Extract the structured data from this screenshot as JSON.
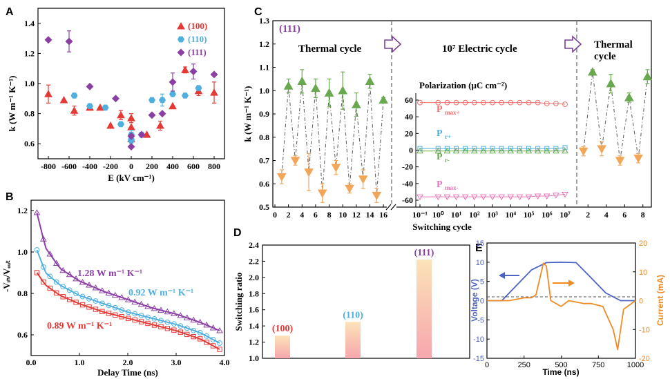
{
  "colors": {
    "red": "#e53935",
    "blue": "#4fb0e0",
    "purple": "#8b3fa3",
    "green": "#6aa84f",
    "orange": "#f2a65a",
    "pink": "#e377b7",
    "salmon": "#ef6f6c",
    "navy": "#4a63c4",
    "cur": "#f08a24"
  },
  "panels": {
    "A": {
      "label": "A",
      "xlabel": "E (kV cm⁻¹)",
      "ylabel": "k (W m⁻¹ K⁻¹)",
      "xlim": [
        -900,
        900
      ],
      "ylim": [
        0.5,
        1.5
      ],
      "xticks": [
        "-800",
        "-600",
        "-400",
        "-200",
        "0",
        "200",
        "400",
        "600",
        "800"
      ],
      "yticks": [
        "0.6",
        "0.8",
        "1.0",
        "1.2",
        "1.4"
      ],
      "legend": [
        "(100)",
        "(110)",
        "(111)"
      ],
      "legend_pos": "top-right"
    },
    "B": {
      "label": "B",
      "xlabel": "Delay Time (ns)",
      "ylabel": "-Vᵢₙ/Vₒᵤₜ",
      "xlim": [
        0,
        4.0
      ],
      "ylim": [
        0.5,
        1.25
      ],
      "xticks": [
        "0.0",
        "1.0",
        "2.0",
        "3.0",
        "4.0"
      ],
      "yticks": [
        "0.6",
        "0.8",
        "1.0",
        "1.2"
      ],
      "annotations": [
        "1.28 W m⁻¹ K⁻¹",
        "0.92 W m⁻¹ K⁻¹",
        "0.89 W m⁻¹ K⁻¹"
      ]
    },
    "C": {
      "label": "C",
      "tag": "(111)",
      "xlabel": "Switching cycle",
      "ylabel": "k (W m⁻¹ K⁻¹)",
      "ylim": [
        0.5,
        1.3
      ],
      "yticks": [
        "0.5",
        "0.6",
        "0.7",
        "0.8",
        "0.9",
        "1.0",
        "1.1",
        "1.2",
        "1.3"
      ],
      "thermal_label": "Thermal cycle",
      "electric_label": "10⁷ Electric cycle",
      "thermal2_label": "Thermal cycle",
      "left_xticks": [
        "0",
        "2",
        "4",
        "6",
        "8",
        "10",
        "12",
        "14",
        "16"
      ],
      "mid_xticks": [
        "10⁻¹",
        "10⁰",
        "10¹",
        "10²",
        "10³",
        "10⁴",
        "10⁵",
        "10⁶",
        "10⁷"
      ],
      "right_xticks": [
        "2",
        "4",
        "6",
        "8"
      ],
      "pol_title": "Polarization (μC cm⁻²)",
      "pol_yticks": [
        "60",
        "40",
        "20",
        "0",
        "-20",
        "-40",
        "-60"
      ],
      "pol_labels": [
        "P",
        "max+",
        "P",
        "r+",
        "P",
        "r-",
        "P",
        "max-"
      ]
    },
    "D": {
      "label": "D",
      "ylabel": "Switching ratio",
      "ylim": [
        1.0,
        2.4
      ],
      "yticks": [
        "1.0",
        "1.2",
        "1.4",
        "1.6",
        "1.8",
        "2.0",
        "2.2",
        "2.4"
      ]
    },
    "E": {
      "label": "E",
      "xlabel": "Time (ns)",
      "ylabel_left": "Voltage (V)",
      "ylabel_right": "Current (mA)",
      "xticks": [
        "0",
        "250",
        "500",
        "750",
        "1000"
      ],
      "yticks_left": [
        "-15",
        "-10",
        "-5",
        "0",
        "5",
        "10",
        "15"
      ],
      "yticks_right": [
        "-20",
        "-10",
        "0",
        "10",
        "20"
      ]
    }
  },
  "chart_data": [
    {
      "panel": "A",
      "type": "scatter",
      "series": [
        {
          "name": "(100)",
          "x": [
            -800,
            -650,
            -550,
            -400,
            -300,
            -200,
            -100,
            0,
            0,
            0,
            150,
            280,
            400,
            520,
            650,
            800
          ],
          "y": [
            0.93,
            0.89,
            0.82,
            0.84,
            0.84,
            0.72,
            0.79,
            0.77,
            0.71,
            0.63,
            0.66,
            0.72,
            0.85,
            1.09,
            0.95,
            0.94
          ],
          "err": [
            0.06,
            0,
            0.03,
            0,
            0,
            0,
            0.03,
            0.03,
            0,
            0,
            0,
            0.03,
            0,
            0.02,
            0.03,
            0.07
          ]
        },
        {
          "name": "(110)",
          "x": [
            -550,
            -400,
            -250,
            -100,
            0,
            0,
            0,
            100,
            200,
            300,
            400,
            520,
            650
          ],
          "y": [
            0.92,
            0.85,
            0.84,
            0.73,
            0.66,
            0.63,
            0.62,
            0.66,
            0.89,
            0.89,
            0.93,
            0.92,
            0.97
          ],
          "err": [
            0,
            0,
            0,
            0,
            0.03,
            0,
            0,
            0,
            0,
            0.04,
            0,
            0,
            0
          ]
        },
        {
          "name": "(111)",
          "x": [
            -800,
            -600,
            -400,
            -150,
            0,
            0,
            100,
            200,
            300,
            400,
            600,
            800
          ],
          "y": [
            1.29,
            1.28,
            0.98,
            0.9,
            0.58,
            0.65,
            0.66,
            0.79,
            0.8,
            1.01,
            1.08,
            1.06
          ],
          "err": [
            0,
            0.07,
            0,
            0,
            0,
            0,
            0,
            0,
            0,
            0.06,
            0.05,
            0
          ]
        }
      ]
    },
    {
      "panel": "B",
      "type": "line",
      "series": [
        {
          "name": "1.28 W m⁻¹ K⁻¹",
          "x": [
            0.12,
            0.3,
            0.6,
            1.0,
            1.5,
            2.0,
            2.5,
            3.0,
            3.5,
            3.9
          ],
          "y": [
            1.19,
            1.02,
            0.92,
            0.86,
            0.81,
            0.77,
            0.73,
            0.7,
            0.66,
            0.62
          ]
        },
        {
          "name": "0.92 W m⁻¹ K⁻¹",
          "x": [
            0.12,
            0.3,
            0.6,
            1.0,
            1.5,
            2.0,
            2.5,
            3.0,
            3.5,
            3.9
          ],
          "y": [
            1.01,
            0.9,
            0.84,
            0.79,
            0.75,
            0.71,
            0.68,
            0.65,
            0.61,
            0.56
          ]
        },
        {
          "name": "0.89 W m⁻¹ K⁻¹",
          "x": [
            0.12,
            0.3,
            0.6,
            1.0,
            1.5,
            2.0,
            2.5,
            3.0,
            3.5,
            3.9
          ],
          "y": [
            0.9,
            0.84,
            0.79,
            0.75,
            0.71,
            0.68,
            0.65,
            0.62,
            0.58,
            0.53
          ]
        }
      ]
    },
    {
      "panel": "C",
      "type": "scatter",
      "thermal_high": {
        "x": [
          2,
          4,
          6,
          8,
          10,
          12,
          14,
          16
        ],
        "y": [
          1.02,
          1.04,
          1.01,
          0.99,
          1.0,
          0.94,
          1.04,
          0.96
        ],
        "err": [
          0.03,
          0.05,
          0.04,
          0.06,
          0.08,
          0.05,
          0.03,
          0.01
        ]
      },
      "thermal_low": {
        "x": [
          1,
          3,
          5,
          7,
          9,
          11,
          13,
          15
        ],
        "y": [
          0.63,
          0.7,
          0.65,
          0.56,
          0.67,
          0.58,
          0.62,
          0.55
        ],
        "err": [
          0.03,
          0.02,
          0.08,
          0.04,
          0.03,
          0.02,
          0.04,
          0.03
        ]
      },
      "polarization": {
        "x_log": [
          -1,
          0,
          0.5,
          1,
          1.5,
          2,
          2.5,
          3,
          3.5,
          4,
          4.5,
          5,
          5.5,
          6,
          6.5,
          7
        ],
        "Pmax_plus": [
          57,
          57,
          57,
          57,
          57,
          57,
          57,
          57,
          57,
          57,
          57,
          57,
          57,
          56,
          56,
          55
        ],
        "Pr_plus": [
          2,
          2,
          2,
          2,
          2,
          2,
          2,
          2,
          2,
          2,
          2,
          2,
          2,
          2,
          2,
          3
        ],
        "Pr_minus": [
          -1,
          -1,
          -1,
          -1,
          -1,
          -1,
          -1,
          -1,
          -1,
          -1,
          -1,
          -1,
          -1,
          -1,
          -1,
          -1
        ],
        "Pmax_minus": [
          -56,
          -56,
          -56,
          -56,
          -56,
          -56,
          -56,
          -56,
          -56,
          -56,
          -56,
          -56,
          -55,
          -55,
          -54,
          -53
        ]
      },
      "thermal2_high": {
        "x": [
          2.5,
          4.5,
          6.5,
          8.5
        ],
        "y": [
          1.08,
          1.03,
          0.97,
          1.06
        ],
        "err": [
          0.01,
          0.04,
          0.02,
          0.03
        ]
      },
      "thermal2_low": {
        "x": [
          1.5,
          3.5,
          5.5,
          7.5
        ],
        "y": [
          0.74,
          0.75,
          0.7,
          0.71
        ],
        "err": [
          0.02,
          0.03,
          0.02,
          0.02
        ]
      }
    },
    {
      "panel": "D",
      "type": "bar",
      "categories": [
        "(100)",
        "(110)",
        "(111)"
      ],
      "values": [
        1.28,
        1.45,
        2.22
      ]
    },
    {
      "panel": "E",
      "type": "line",
      "voltage": {
        "x": [
          0,
          100,
          200,
          300,
          400,
          500,
          600,
          700,
          800,
          900,
          1000
        ],
        "y": [
          0,
          0,
          4,
          8,
          9.9,
          10,
          9.9,
          6,
          2,
          0,
          0
        ]
      },
      "current": {
        "x": [
          0,
          150,
          250,
          300,
          330,
          380,
          400,
          430,
          500,
          550,
          650,
          700,
          780,
          850,
          880,
          920,
          1000
        ],
        "y": [
          0,
          0,
          1,
          1,
          2,
          13,
          12,
          0,
          -2,
          0,
          -1,
          -1,
          -2,
          -10,
          -17,
          -3,
          0
        ]
      }
    }
  ]
}
